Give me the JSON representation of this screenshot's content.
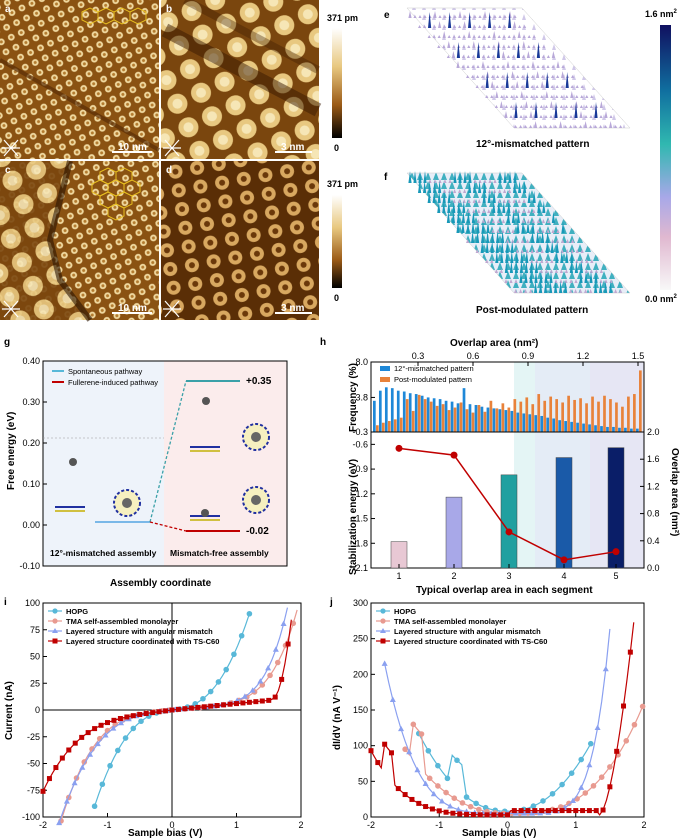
{
  "panels": {
    "a": {
      "letter": "a",
      "scale": "10 nm"
    },
    "b": {
      "letter": "b",
      "scale": "3 nm"
    },
    "c": {
      "letter": "c",
      "scale": "10 nm"
    },
    "d": {
      "letter": "d",
      "scale": "3 nm"
    },
    "e": {
      "letter": "e",
      "caption": "12°-mismatched pattern"
    },
    "f": {
      "letter": "f",
      "caption": "Post-modulated pattern"
    },
    "g": {
      "letter": "g"
    },
    "h": {
      "letter": "h"
    },
    "i": {
      "letter": "i"
    },
    "j": {
      "letter": "j"
    }
  },
  "stm_colorbar": {
    "top": "371 pm",
    "bottom": "0"
  },
  "stm_colorbar2": {
    "top": "371 pm",
    "bottom": "0"
  },
  "area_colorbar": {
    "top": "1.6 nm",
    "bottom": "0.0 nm",
    "sup": "2"
  },
  "colors": {
    "stm_light": "#f3e2b0",
    "stm_dark": "#5a2e06",
    "blue": "#1e88d8",
    "orange": "#e8823a",
    "red": "#c00000",
    "cyan": "#58b8d8",
    "lightblue": "#8fb8e0",
    "salmon": "#e89a90",
    "periwinkle": "#8aa0f0"
  },
  "chart_data": [
    {
      "id": "g",
      "type": "line",
      "ylabel": "Free energy (eV)",
      "xlabel": "Assembly coordinate",
      "ylim": [
        -0.1,
        0.4
      ],
      "yticks": [
        "-0.10",
        "0.00",
        "0.10",
        "0.20",
        "0.30",
        "0.40"
      ],
      "legend": [
        "Spontaneous pathway",
        "Fullerene-induced pathway"
      ],
      "regions": [
        "12°-mismatched assembly",
        "Mismatch-free assembly"
      ],
      "levels": [
        {
          "name": "start",
          "value": 0.0
        },
        {
          "name": "spontaneous",
          "value": 0.35,
          "label": "+0.35"
        },
        {
          "name": "fullerene",
          "value": -0.02,
          "label": "-0.02"
        }
      ]
    },
    {
      "id": "h_top",
      "type": "bar",
      "xlabel_top": "Overlap area (nm²)",
      "ylabel": "Frequency (%)",
      "xticks": [
        "0.3",
        "0.6",
        "0.9",
        "1.2",
        "1.5"
      ],
      "yticks": [
        "-0.3",
        "3.8",
        "8.0"
      ],
      "ylim": [
        -0.3,
        8.0
      ],
      "legend": [
        "12°-mismatched pattern",
        "Post-modulated pattern"
      ],
      "series": [
        {
          "name": "12°-mismatched pattern",
          "values": [
            3.4,
            4.6,
            5.0,
            4.9,
            4.6,
            4.5,
            4.3,
            4.2,
            4.0,
            3.8,
            3.7,
            3.6,
            3.4,
            3.3,
            3.1,
            4.9,
            3.0,
            2.9,
            2.7,
            2.6,
            2.5,
            2.4,
            2.3,
            2.2,
            2.0,
            1.9,
            1.8,
            1.7,
            1.6,
            1.4,
            1.3,
            1.1,
            1.0,
            0.9,
            0.8,
            0.7,
            0.6,
            0.5,
            0.4,
            0.3,
            0.3,
            0.2,
            0.2,
            0.1,
            0.1
          ]
        },
        {
          "name": "Post-modulated pattern",
          "values": [
            0.5,
            0.8,
            1.0,
            1.2,
            1.4,
            3.6,
            2.2,
            4.1,
            3.6,
            3.3,
            2.8,
            3.0,
            2.3,
            2.6,
            3.2,
            2.4,
            2.0,
            2.9,
            2.1,
            3.4,
            2.5,
            3.1,
            2.6,
            3.6,
            3.3,
            3.8,
            3.0,
            4.2,
            3.4,
            3.9,
            3.6,
            3.2,
            4.0,
            3.5,
            3.7,
            3.1,
            3.9,
            3.3,
            4.0,
            3.6,
            3.2,
            2.7,
            3.9,
            4.2,
            7.0
          ]
        }
      ]
    },
    {
      "id": "h_bottom",
      "type": "bar+line",
      "xlabel": "Typical overlap area in each segment",
      "ylabel": "Stabilization energy (eV)",
      "ylabel2": "Overlap area (nm²)",
      "categories": [
        "1",
        "2",
        "3",
        "4",
        "5"
      ],
      "energy": [
        -1.78,
        -1.24,
        -0.97,
        -0.76,
        -0.64
      ],
      "overlap": [
        1.76,
        1.66,
        0.53,
        0.12,
        0.24
      ],
      "ylim": [
        -2.1,
        -0.45
      ],
      "yticks": [
        "-0.6",
        "-0.9",
        "-1.2",
        "-1.5",
        "-1.8",
        "-2.1"
      ],
      "y2ticks": [
        "2.0",
        "1.6",
        "1.2",
        "0.8",
        "0.4",
        "0.0"
      ],
      "bar_colors": [
        "#e8c8d4",
        "#a8a8e8",
        "#20a0a0",
        "#1a5aa8",
        "#0a1e68"
      ]
    },
    {
      "id": "i",
      "type": "line",
      "xlabel": "Sample bias (V)",
      "ylabel": "Current (nA)",
      "xlim": [
        -2,
        2
      ],
      "ylim": [
        -100,
        100
      ],
      "xticks": [
        "-2",
        "-1",
        "0",
        "1",
        "2"
      ],
      "yticks": [
        "100",
        "75",
        "50",
        "25",
        "0",
        "-25",
        "-50",
        "-75",
        "-100"
      ],
      "legend": [
        "HOPG",
        "TMA self-assembled monolayer",
        "Layered structure with angular mismatch",
        "Layered structure coordinated with TS-C60"
      ]
    },
    {
      "id": "j",
      "type": "line",
      "xlabel": "Sample bias (V)",
      "ylabel": "dI/dV (nA V⁻¹)",
      "xlim": [
        -2,
        2
      ],
      "ylim": [
        0,
        300
      ],
      "xticks": [
        "-2",
        "-1",
        "0",
        "1",
        "2"
      ],
      "yticks": [
        "300",
        "250",
        "200",
        "150",
        "100",
        "50",
        "0"
      ],
      "legend": [
        "HOPG",
        "TMA self-assembled monolayer",
        "Layered structure with angular mismatch",
        "Layered structure coordinated with TS-C60"
      ]
    }
  ]
}
